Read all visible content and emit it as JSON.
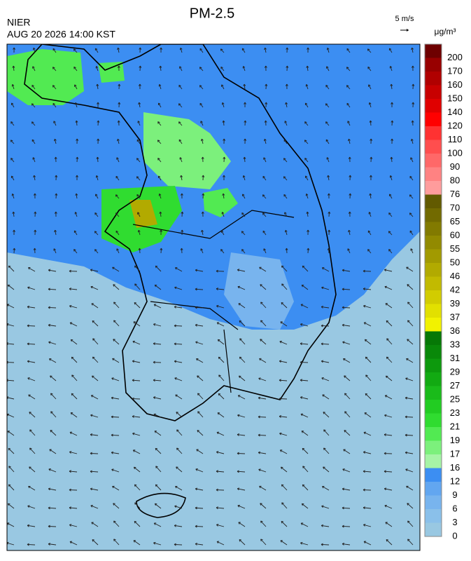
{
  "header": {
    "title": "PM-2.5",
    "agency": "NIER",
    "datetime": "AUG 20 2026 14:00 KST",
    "wind_scale": "5 m/s"
  },
  "colorbar": {
    "unit": "μg/m³",
    "labels": [
      0,
      3,
      6,
      9,
      12,
      16,
      17,
      19,
      21,
      23,
      25,
      27,
      29,
      31,
      33,
      36,
      37,
      39,
      42,
      46,
      50,
      55,
      60,
      65,
      70,
      76,
      80,
      90,
      100,
      110,
      120,
      140,
      150,
      160,
      170,
      200
    ],
    "colors": [
      "#99c8e2",
      "#8ac0ea",
      "#78b4ee",
      "#62a6f0",
      "#3c8ef2",
      "#a6f4a6",
      "#7cf07c",
      "#52ea52",
      "#30dc30",
      "#22cc22",
      "#1abb1a",
      "#12aa12",
      "#0d990d",
      "#098809",
      "#067806",
      "#f2f200",
      "#e2e000",
      "#d2cc00",
      "#c2ba00",
      "#b2aa00",
      "#a29a00",
      "#928a00",
      "#827a00",
      "#726a00",
      "#625a00",
      "#ff9c9c",
      "#ff8282",
      "#ff6868",
      "#ff4e4e",
      "#ff3232",
      "#ff0000",
      "#e00000",
      "#c80000",
      "#b00000",
      "#980000",
      "#6e0000"
    ]
  }
}
